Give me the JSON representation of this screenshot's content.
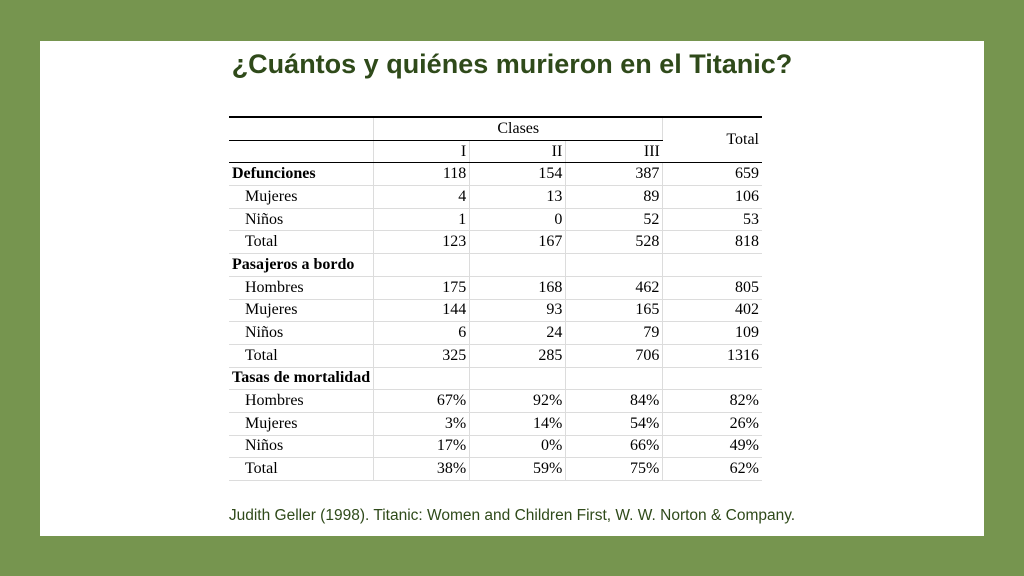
{
  "title": "¿Cuántos y quiénes murieron en el Titanic?",
  "citation": "Judith Geller (1998). Titanic: Women and Children First, W. W. Norton & Company.",
  "table": {
    "group_header": "Clases",
    "total_header": "Total",
    "class_headers": [
      "I",
      "II",
      "III"
    ],
    "sections": [
      {
        "label": "Defunciones",
        "values": [
          "118",
          "154",
          "387",
          "659"
        ],
        "rows": [
          {
            "label": "Mujeres",
            "values": [
              "4",
              "13",
              "89",
              "106"
            ]
          },
          {
            "label": "Niños",
            "values": [
              "1",
              "0",
              "52",
              "53"
            ]
          },
          {
            "label": "Total",
            "values": [
              "123",
              "167",
              "528",
              "818"
            ]
          }
        ]
      },
      {
        "label": "Pasajeros a bordo",
        "rows": [
          {
            "label": "Hombres",
            "values": [
              "175",
              "168",
              "462",
              "805"
            ]
          },
          {
            "label": "Mujeres",
            "values": [
              "144",
              "93",
              "165",
              "402"
            ]
          },
          {
            "label": "Niños",
            "values": [
              "6",
              "24",
              "79",
              "109"
            ]
          },
          {
            "label": "Total",
            "values": [
              "325",
              "285",
              "706",
              "1316"
            ]
          }
        ]
      },
      {
        "label": "Tasas de mortalidad",
        "rows": [
          {
            "label": "Hombres",
            "values": [
              "67%",
              "92%",
              "84%",
              "82%"
            ]
          },
          {
            "label": "Mujeres",
            "values": [
              "3%",
              "14%",
              "54%",
              "26%"
            ]
          },
          {
            "label": "Niños",
            "values": [
              "17%",
              "0%",
              "66%",
              "49%"
            ]
          },
          {
            "label": "Total",
            "values": [
              "38%",
              "59%",
              "75%",
              "62%"
            ]
          }
        ]
      }
    ]
  }
}
